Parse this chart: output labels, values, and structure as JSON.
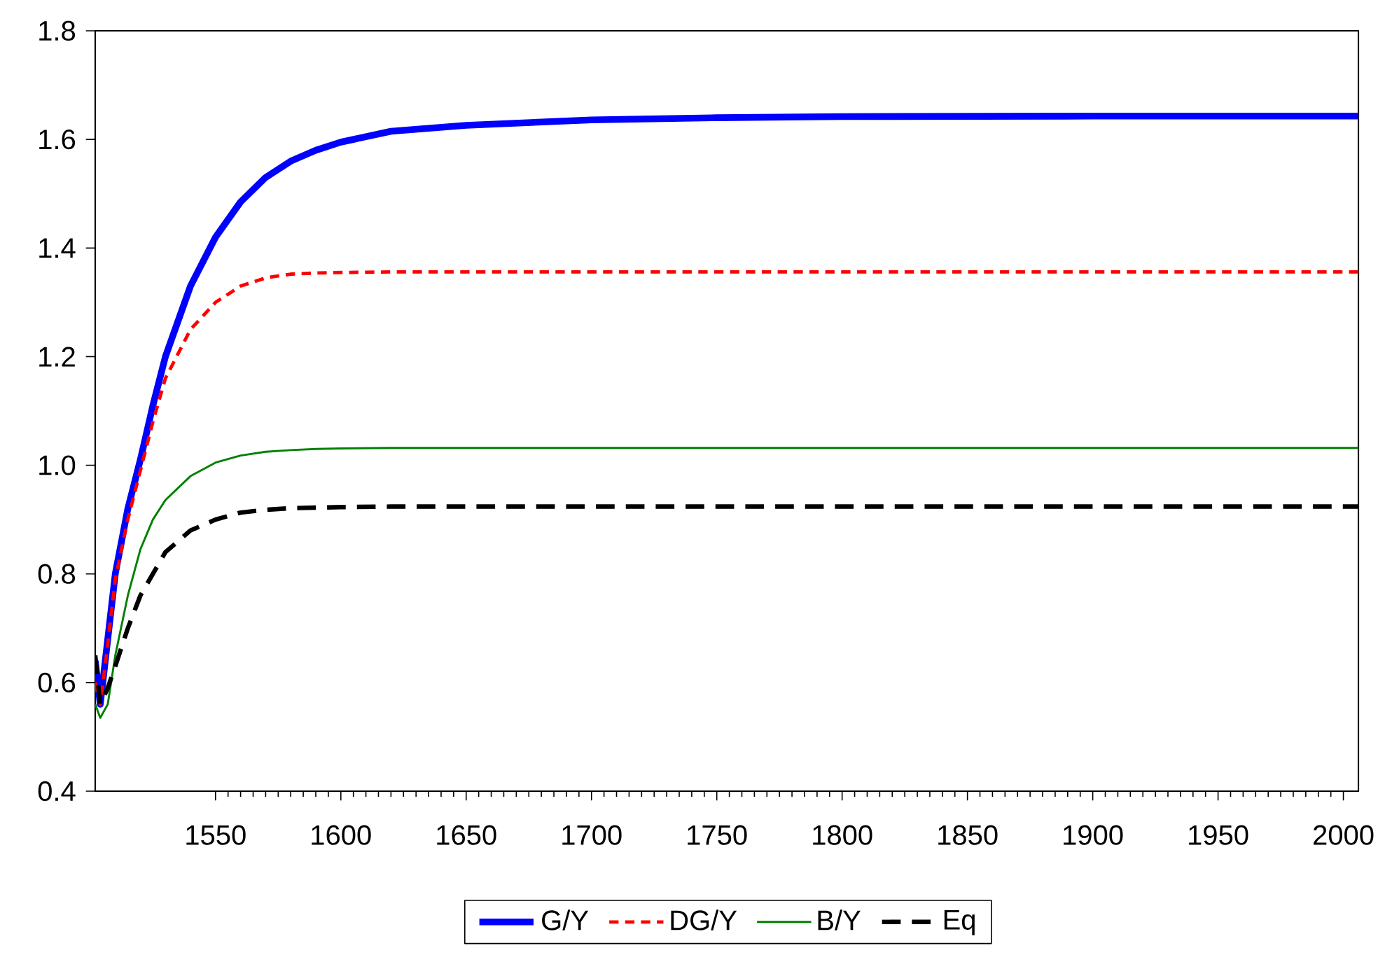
{
  "chart_data": {
    "type": "line",
    "x": [
      1502,
      1504,
      1507,
      1510,
      1515,
      1520,
      1525,
      1530,
      1540,
      1550,
      1560,
      1570,
      1580,
      1590,
      1600,
      1620,
      1650,
      1700,
      1750,
      1800,
      1900,
      2006
    ],
    "series": [
      {
        "name": "G/Y",
        "color": "#0000ff",
        "line_style": "solid",
        "values": [
          0.64,
          0.56,
          0.68,
          0.8,
          0.92,
          1.01,
          1.11,
          1.2,
          1.33,
          1.42,
          1.485,
          1.53,
          1.56,
          1.58,
          1.595,
          1.615,
          1.626,
          1.636,
          1.64,
          1.642,
          1.643,
          1.643
        ]
      },
      {
        "name": "DG/Y",
        "color": "#ff0000",
        "line_style": "dashed",
        "values": [
          0.6,
          0.56,
          0.67,
          0.79,
          0.9,
          0.99,
          1.08,
          1.16,
          1.25,
          1.3,
          1.33,
          1.345,
          1.352,
          1.354,
          1.355,
          1.356,
          1.356,
          1.356,
          1.356,
          1.356,
          1.356,
          1.356
        ]
      },
      {
        "name": "B/Y",
        "color": "#008000",
        "line_style": "solid",
        "values": [
          0.56,
          0.535,
          0.56,
          0.65,
          0.76,
          0.845,
          0.9,
          0.936,
          0.98,
          1.005,
          1.018,
          1.025,
          1.028,
          1.03,
          1.031,
          1.032,
          1.032,
          1.032,
          1.032,
          1.032,
          1.032,
          1.032
        ]
      },
      {
        "name": "Eq",
        "color": "#000000",
        "line_style": "dashed",
        "values": [
          0.65,
          0.56,
          0.59,
          0.63,
          0.7,
          0.76,
          0.8,
          0.84,
          0.88,
          0.9,
          0.913,
          0.918,
          0.921,
          0.922,
          0.923,
          0.924,
          0.924,
          0.924,
          0.924,
          0.924,
          0.924,
          0.924
        ]
      }
    ],
    "xlim": [
      1502,
      2006
    ],
    "xticks": [
      1550,
      1600,
      1650,
      1700,
      1750,
      1800,
      1850,
      1900,
      1950,
      2000
    ],
    "ylim": [
      0.4,
      1.8
    ],
    "yticks": [
      0.4,
      0.6,
      0.8,
      {
        "value": 1.0,
        "label": "1.0"
      },
      1.2,
      1.4,
      1.6,
      1.8
    ],
    "grid": false,
    "legend": "bottom",
    "marker": "none"
  }
}
